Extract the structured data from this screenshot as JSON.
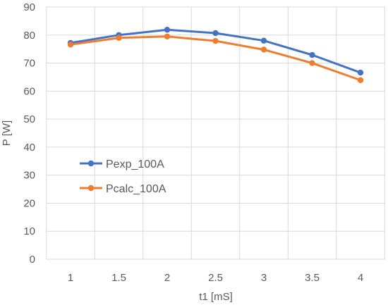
{
  "chart_data": {
    "type": "line",
    "title": "",
    "xlabel": "t1 [mS]",
    "ylabel": "P [W]",
    "x": [
      1,
      1.5,
      2,
      2.5,
      3,
      3.5,
      4
    ],
    "x_tick_labels": [
      "1",
      "1.5",
      "2",
      "2.5",
      "3",
      "3.5",
      "4"
    ],
    "ylim": [
      0,
      90
    ],
    "y_ticks": [
      0,
      10,
      20,
      30,
      40,
      50,
      60,
      70,
      80,
      90
    ],
    "y_tick_labels": [
      "0",
      "10",
      "20",
      "30",
      "40",
      "50",
      "60",
      "70",
      "80",
      "90"
    ],
    "grid": true,
    "legend_position": "middle-left",
    "series": [
      {
        "name": "Pexp_100A",
        "color": "#4472c4",
        "values": [
          77.2,
          80.0,
          81.9,
          80.7,
          78.0,
          72.9,
          66.6
        ]
      },
      {
        "name": "Pcalc_100A",
        "color": "#ed7d31",
        "values": [
          76.6,
          79.0,
          79.5,
          77.9,
          74.8,
          70.0,
          63.9
        ]
      }
    ]
  }
}
